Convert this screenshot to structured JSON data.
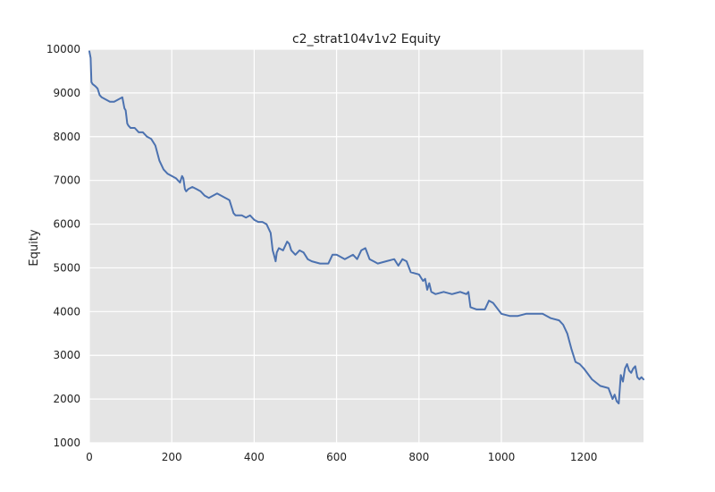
{
  "chart_data": {
    "type": "line",
    "title": "c2_strat104v1v2 Equity",
    "xlabel": "",
    "ylabel": "Equity",
    "xlim": [
      0,
      1345
    ],
    "ylim": [
      1000,
      10000
    ],
    "x_ticks": [
      0,
      200,
      400,
      600,
      800,
      1000,
      1200
    ],
    "y_ticks": [
      1000,
      2000,
      3000,
      4000,
      5000,
      6000,
      7000,
      8000,
      9000,
      10000
    ],
    "grid": true,
    "legend": "none",
    "colors": {
      "line": "#4c72b0",
      "plot_background": "#e5e5e5",
      "grid": "#ffffff"
    },
    "series": [
      {
        "x": [
          0,
          3,
          5,
          8,
          15,
          20,
          25,
          30,
          40,
          50,
          60,
          70,
          80,
          85,
          88,
          92,
          95,
          100,
          110,
          120,
          130,
          140,
          150,
          160,
          170,
          175,
          180,
          190,
          200,
          210,
          220,
          225,
          228,
          232,
          235,
          240,
          250,
          260,
          270,
          280,
          290,
          300,
          310,
          320,
          330,
          340,
          350,
          355,
          360,
          370,
          380,
          390,
          400,
          410,
          420,
          430,
          440,
          445,
          448,
          452,
          455,
          460,
          470,
          480,
          485,
          490,
          500,
          510,
          520,
          530,
          540,
          560,
          580,
          590,
          600,
          620,
          640,
          650,
          660,
          670,
          680,
          690,
          700,
          720,
          740,
          750,
          760,
          770,
          780,
          800,
          810,
          815,
          820,
          825,
          830,
          840,
          860,
          880,
          900,
          915,
          920,
          925,
          940,
          960,
          970,
          980,
          1000,
          1020,
          1040,
          1060,
          1080,
          1100,
          1120,
          1140,
          1150,
          1160,
          1170,
          1180,
          1190,
          1200,
          1220,
          1240,
          1260,
          1270,
          1275,
          1280,
          1285,
          1290,
          1295,
          1300,
          1305,
          1310,
          1315,
          1320,
          1325,
          1330,
          1335,
          1340,
          1345
        ],
        "y": [
          9950,
          9800,
          9250,
          9200,
          9150,
          9100,
          8950,
          8900,
          8850,
          8800,
          8800,
          8850,
          8900,
          8650,
          8600,
          8300,
          8250,
          8200,
          8200,
          8100,
          8100,
          8000,
          7950,
          7800,
          7450,
          7350,
          7250,
          7150,
          7100,
          7050,
          6950,
          7100,
          7050,
          6800,
          6750,
          6800,
          6850,
          6800,
          6750,
          6650,
          6600,
          6650,
          6700,
          6650,
          6600,
          6550,
          6250,
          6200,
          6200,
          6200,
          6150,
          6200,
          6100,
          6050,
          6050,
          6000,
          5800,
          5400,
          5300,
          5150,
          5350,
          5450,
          5400,
          5600,
          5550,
          5400,
          5300,
          5400,
          5350,
          5200,
          5150,
          5100,
          5100,
          5300,
          5300,
          5200,
          5300,
          5200,
          5400,
          5450,
          5200,
          5150,
          5100,
          5150,
          5200,
          5050,
          5200,
          5150,
          4900,
          4850,
          4700,
          4750,
          4500,
          4650,
          4450,
          4400,
          4450,
          4400,
          4450,
          4400,
          4450,
          4100,
          4050,
          4050,
          4250,
          4200,
          3950,
          3900,
          3900,
          3950,
          3950,
          3950,
          3850,
          3800,
          3700,
          3500,
          3150,
          2850,
          2800,
          2700,
          2450,
          2300,
          2250,
          2000,
          2100,
          1950,
          1900,
          2550,
          2400,
          2700,
          2800,
          2650,
          2600,
          2700,
          2750,
          2500,
          2450,
          2500,
          2450
        ]
      }
    ]
  }
}
